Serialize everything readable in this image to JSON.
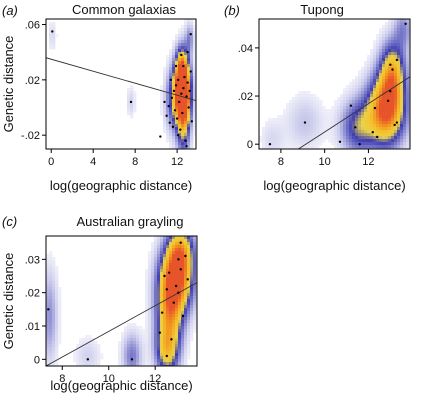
{
  "figure": {
    "background": "#ffffff",
    "density_colors": [
      "#ffffff",
      "#c9c9ec",
      "#7f7fcc",
      "#3e3eb2",
      "#e9d24a",
      "#f4c02b",
      "#f29420",
      "#e8542a"
    ],
    "point_color": "#000000",
    "line_color": "#333333"
  },
  "chart_data": [
    {
      "type": "scatter",
      "panel_label": "(a)",
      "title": "Common galaxias",
      "xlabel": "log(geographic distance)",
      "ylabel": "Genetic distance",
      "xlim": [
        -0.5,
        13.8
      ],
      "ylim": [
        -0.03,
        0.064
      ],
      "xticks": [
        0,
        4,
        8,
        12
      ],
      "xtick_labels": [
        "0",
        "4",
        "8",
        "12"
      ],
      "yticks": [
        -0.02,
        0.02,
        0.06
      ],
      "ytick_labels": [
        "-.02",
        ".02",
        ".06"
      ],
      "grid": false,
      "legend": "none",
      "regression_line": {
        "x": [
          -0.5,
          13.8
        ],
        "y": [
          0.036,
          0.005
        ]
      },
      "points": [
        {
          "x": 0.1,
          "y": 0.055
        },
        {
          "x": 7.6,
          "y": 0.004
        },
        {
          "x": 10.4,
          "y": -0.021
        },
        {
          "x": 10.8,
          "y": 0.004
        },
        {
          "x": 11.0,
          "y": -0.006
        },
        {
          "x": 11.2,
          "y": 0.001
        },
        {
          "x": 11.3,
          "y": -0.011
        },
        {
          "x": 11.5,
          "y": 0.007
        },
        {
          "x": 11.6,
          "y": -0.014
        },
        {
          "x": 11.7,
          "y": 0.012
        },
        {
          "x": 11.8,
          "y": -0.002
        },
        {
          "x": 11.9,
          "y": 0.016
        },
        {
          "x": 12.0,
          "y": -0.008
        },
        {
          "x": 12.1,
          "y": 0.02
        },
        {
          "x": 12.2,
          "y": 0.004
        },
        {
          "x": 12.3,
          "y": -0.016
        },
        {
          "x": 12.4,
          "y": 0.01
        },
        {
          "x": 12.5,
          "y": -0.004
        },
        {
          "x": 12.6,
          "y": 0.014
        },
        {
          "x": 12.7,
          "y": 0.022
        },
        {
          "x": 12.8,
          "y": -0.024
        },
        {
          "x": 12.9,
          "y": 0.008
        },
        {
          "x": 13.0,
          "y": 0.018
        },
        {
          "x": 13.1,
          "y": 0.0
        },
        {
          "x": 13.2,
          "y": 0.012
        },
        {
          "x": 13.3,
          "y": 0.026
        },
        {
          "x": 13.3,
          "y": 0.053
        },
        {
          "x": 13.4,
          "y": -0.01
        },
        {
          "x": 11.4,
          "y": 0.02
        },
        {
          "x": 12.1,
          "y": -0.02
        },
        {
          "x": 12.6,
          "y": 0.03
        },
        {
          "x": 13.0,
          "y": 0.04
        },
        {
          "x": 12.9,
          "y": -0.028
        },
        {
          "x": 11.9,
          "y": 0.03
        },
        {
          "x": 12.4,
          "y": 0.038
        }
      ],
      "density": [
        {
          "x": 12.5,
          "y": 0.012,
          "sx": 0.55,
          "sy": 0.014,
          "w": 1.0
        },
        {
          "x": 12.6,
          "y": 0.0,
          "sx": 0.45,
          "sy": 0.022,
          "w": 0.75
        },
        {
          "x": 12.4,
          "y": 0.03,
          "sx": 0.4,
          "sy": 0.01,
          "w": 0.45
        },
        {
          "x": 11.6,
          "y": 0.005,
          "sx": 0.55,
          "sy": 0.016,
          "w": 0.35
        },
        {
          "x": 13.2,
          "y": 0.05,
          "sx": 0.3,
          "sy": 0.008,
          "w": 0.25
        },
        {
          "x": 7.6,
          "y": 0.004,
          "sx": 0.3,
          "sy": 0.008,
          "w": 0.12
        },
        {
          "x": 0.1,
          "y": 0.052,
          "sx": 0.3,
          "sy": 0.008,
          "w": 0.1
        }
      ]
    },
    {
      "type": "scatter",
      "panel_label": "(b)",
      "title": "Tupong",
      "xlabel": "log(geographic distance)",
      "ylabel": "",
      "xlim": [
        7.0,
        13.9
      ],
      "ylim": [
        -0.002,
        0.052
      ],
      "xticks": [
        8,
        10,
        12
      ],
      "xtick_labels": [
        "8",
        "10",
        "12"
      ],
      "yticks": [
        0,
        0.02,
        0.04
      ],
      "ytick_labels": [
        "0",
        ".02",
        ".04"
      ],
      "grid": false,
      "legend": "none",
      "regression_line": {
        "x": [
          8.8,
          13.9
        ],
        "y": [
          -0.002,
          0.028
        ]
      },
      "points": [
        {
          "x": 7.5,
          "y": 0.0
        },
        {
          "x": 9.1,
          "y": 0.009
        },
        {
          "x": 10.7,
          "y": 0.001
        },
        {
          "x": 11.2,
          "y": 0.016
        },
        {
          "x": 11.4,
          "y": 0.007
        },
        {
          "x": 11.6,
          "y": 0.0
        },
        {
          "x": 12.2,
          "y": 0.005
        },
        {
          "x": 12.3,
          "y": 0.015
        },
        {
          "x": 12.9,
          "y": 0.018
        },
        {
          "x": 13.0,
          "y": 0.022
        },
        {
          "x": 13.0,
          "y": 0.033
        },
        {
          "x": 13.1,
          "y": 0.031
        },
        {
          "x": 13.2,
          "y": 0.008
        },
        {
          "x": 13.3,
          "y": 0.009
        },
        {
          "x": 13.3,
          "y": 0.035
        },
        {
          "x": 13.7,
          "y": 0.05
        },
        {
          "x": 12.4,
          "y": 0.003
        }
      ],
      "density": [
        {
          "x": 12.8,
          "y": 0.014,
          "sx": 0.6,
          "sy": 0.01,
          "w": 1.0
        },
        {
          "x": 13.1,
          "y": 0.03,
          "sx": 0.4,
          "sy": 0.009,
          "w": 0.65
        },
        {
          "x": 11.5,
          "y": 0.007,
          "sx": 0.55,
          "sy": 0.008,
          "w": 0.45
        },
        {
          "x": 13.6,
          "y": 0.048,
          "sx": 0.3,
          "sy": 0.006,
          "w": 0.25
        },
        {
          "x": 9.1,
          "y": 0.009,
          "sx": 0.6,
          "sy": 0.008,
          "w": 0.15
        },
        {
          "x": 7.6,
          "y": 0.002,
          "sx": 0.4,
          "sy": 0.006,
          "w": 0.1
        }
      ]
    },
    {
      "type": "scatter",
      "panel_label": "(c)",
      "title": "Australian grayling",
      "xlabel": "log(geographic distance)",
      "ylabel": "Genetic distance",
      "xlim": [
        7.3,
        13.8
      ],
      "ylim": [
        -0.002,
        0.037
      ],
      "xticks": [
        8,
        10,
        12
      ],
      "xtick_labels": [
        "8",
        "10",
        "12"
      ],
      "yticks": [
        0,
        0.01,
        0.02,
        0.03
      ],
      "ytick_labels": [
        "0",
        ".01",
        ".02",
        ".03"
      ],
      "grid": false,
      "legend": "none",
      "regression_line": {
        "x": [
          7.3,
          13.8
        ],
        "y": [
          -0.002,
          0.023
        ]
      },
      "points": [
        {
          "x": 7.4,
          "y": 0.015
        },
        {
          "x": 9.1,
          "y": 0.0
        },
        {
          "x": 11.0,
          "y": 0.0
        },
        {
          "x": 12.2,
          "y": 0.008
        },
        {
          "x": 12.3,
          "y": 0.014
        },
        {
          "x": 12.4,
          "y": 0.025
        },
        {
          "x": 12.5,
          "y": 0.021
        },
        {
          "x": 12.6,
          "y": 0.026
        },
        {
          "x": 12.8,
          "y": 0.017
        },
        {
          "x": 12.9,
          "y": 0.022
        },
        {
          "x": 13.0,
          "y": 0.03
        },
        {
          "x": 13.0,
          "y": 0.02
        },
        {
          "x": 13.1,
          "y": 0.027
        },
        {
          "x": 13.2,
          "y": 0.013
        },
        {
          "x": 13.3,
          "y": 0.031
        },
        {
          "x": 13.4,
          "y": 0.024
        },
        {
          "x": 12.7,
          "y": 0.006
        },
        {
          "x": 12.5,
          "y": 0.001
        },
        {
          "x": 13.1,
          "y": 0.035
        }
      ],
      "density": [
        {
          "x": 12.9,
          "y": 0.024,
          "sx": 0.5,
          "sy": 0.007,
          "w": 1.0
        },
        {
          "x": 12.6,
          "y": 0.012,
          "sx": 0.4,
          "sy": 0.008,
          "w": 0.65
        },
        {
          "x": 12.5,
          "y": 0.002,
          "sx": 0.35,
          "sy": 0.005,
          "w": 0.45
        },
        {
          "x": 13.1,
          "y": 0.033,
          "sx": 0.4,
          "sy": 0.005,
          "w": 0.55
        },
        {
          "x": 11.0,
          "y": 0.001,
          "sx": 0.3,
          "sy": 0.005,
          "w": 0.3
        },
        {
          "x": 9.1,
          "y": 0.001,
          "sx": 0.4,
          "sy": 0.004,
          "w": 0.12
        },
        {
          "x": 7.45,
          "y": 0.013,
          "sx": 0.25,
          "sy": 0.01,
          "w": 0.25
        }
      ]
    }
  ]
}
